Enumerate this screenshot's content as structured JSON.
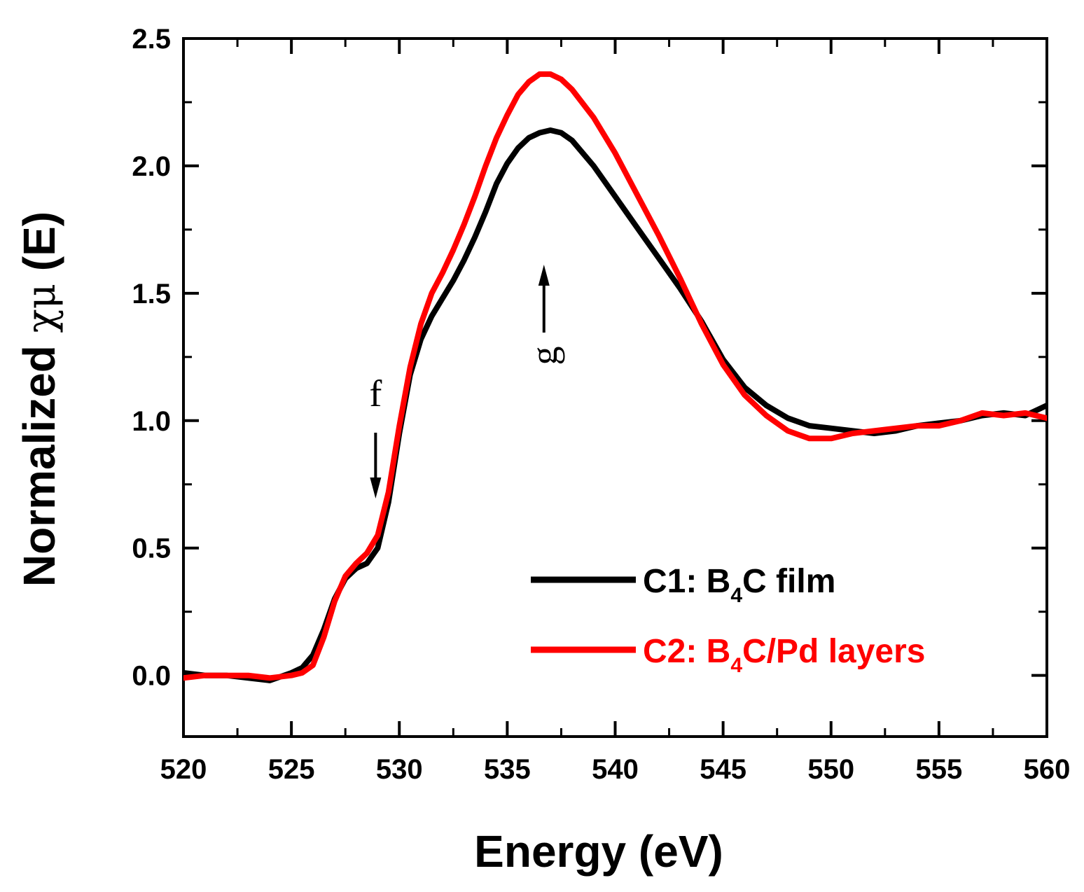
{
  "chart_data": {
    "type": "line",
    "xlabel": "Energy (eV)",
    "ylabel_prefix": "Normalized ",
    "ylabel_symbol": "χμ",
    "ylabel_suffix": " (E)",
    "xlim": [
      520,
      560
    ],
    "ylim": [
      -0.24,
      2.5
    ],
    "xticks": [
      520,
      525,
      530,
      535,
      540,
      545,
      550,
      555,
      560
    ],
    "xtick_labels": [
      "520",
      "525",
      "530",
      "535",
      "540",
      "545",
      "550",
      "555",
      "560"
    ],
    "yticks": [
      0.0,
      0.5,
      1.0,
      1.5,
      2.0,
      2.5
    ],
    "ytick_labels": [
      "0.0",
      "0.5",
      "1.0",
      "1.5",
      "2.0",
      "2.5"
    ],
    "legend_position": "lower-right",
    "series": [
      {
        "name": "C1: B4C film",
        "label_main": "C1: B",
        "label_sub": "4",
        "label_rest": "C film",
        "color": "#000000",
        "x": [
          520,
          521,
          522,
          523,
          524,
          525,
          525.5,
          526,
          526.5,
          527,
          527.5,
          528,
          528.5,
          529,
          529.5,
          530,
          530.5,
          531,
          531.5,
          532,
          532.5,
          533,
          533.5,
          534,
          534.5,
          535,
          535.5,
          536,
          536.5,
          537,
          537.5,
          538,
          539,
          540,
          541,
          542,
          543,
          544,
          545,
          546,
          547,
          548,
          549,
          550,
          551,
          552,
          553,
          554,
          555,
          556,
          557,
          558,
          559,
          560
        ],
        "y": [
          0.01,
          0.0,
          0.0,
          -0.01,
          -0.02,
          0.01,
          0.03,
          0.08,
          0.18,
          0.3,
          0.38,
          0.42,
          0.44,
          0.5,
          0.68,
          0.95,
          1.18,
          1.32,
          1.41,
          1.48,
          1.55,
          1.63,
          1.72,
          1.82,
          1.93,
          2.01,
          2.07,
          2.11,
          2.13,
          2.14,
          2.13,
          2.1,
          2.0,
          1.88,
          1.76,
          1.64,
          1.52,
          1.39,
          1.24,
          1.13,
          1.06,
          1.01,
          0.98,
          0.97,
          0.96,
          0.95,
          0.96,
          0.98,
          0.99,
          1.0,
          1.02,
          1.03,
          1.02,
          1.06
        ]
      },
      {
        "name": "C2: B4C/Pd layers",
        "label_main": "C2: B",
        "label_sub": "4",
        "label_rest": "C/Pd layers",
        "color": "#ff0000",
        "x": [
          520,
          521,
          522,
          523,
          524,
          525,
          525.5,
          526,
          526.5,
          527,
          527.5,
          528,
          528.5,
          529,
          529.5,
          530,
          530.5,
          531,
          531.5,
          532,
          532.5,
          533,
          533.5,
          534,
          534.5,
          535,
          535.5,
          536,
          536.5,
          537,
          537.5,
          538,
          539,
          540,
          541,
          542,
          543,
          544,
          545,
          546,
          547,
          548,
          549,
          550,
          551,
          552,
          553,
          554,
          555,
          556,
          557,
          558,
          559,
          560
        ],
        "y": [
          -0.01,
          0.0,
          0.0,
          0.0,
          -0.01,
          0.0,
          0.01,
          0.04,
          0.15,
          0.29,
          0.39,
          0.44,
          0.48,
          0.55,
          0.72,
          0.98,
          1.21,
          1.38,
          1.5,
          1.58,
          1.67,
          1.77,
          1.88,
          2.0,
          2.11,
          2.2,
          2.28,
          2.33,
          2.36,
          2.36,
          2.34,
          2.3,
          2.19,
          2.05,
          1.89,
          1.73,
          1.56,
          1.38,
          1.22,
          1.1,
          1.02,
          0.96,
          0.93,
          0.93,
          0.95,
          0.96,
          0.97,
          0.98,
          0.98,
          1.0,
          1.03,
          1.02,
          1.03,
          1.01
        ]
      }
    ],
    "annotations": [
      {
        "label": "f",
        "arrow": "down",
        "x": 528.9
      },
      {
        "label": "g",
        "arrow": "up",
        "x": 536.7
      }
    ]
  }
}
